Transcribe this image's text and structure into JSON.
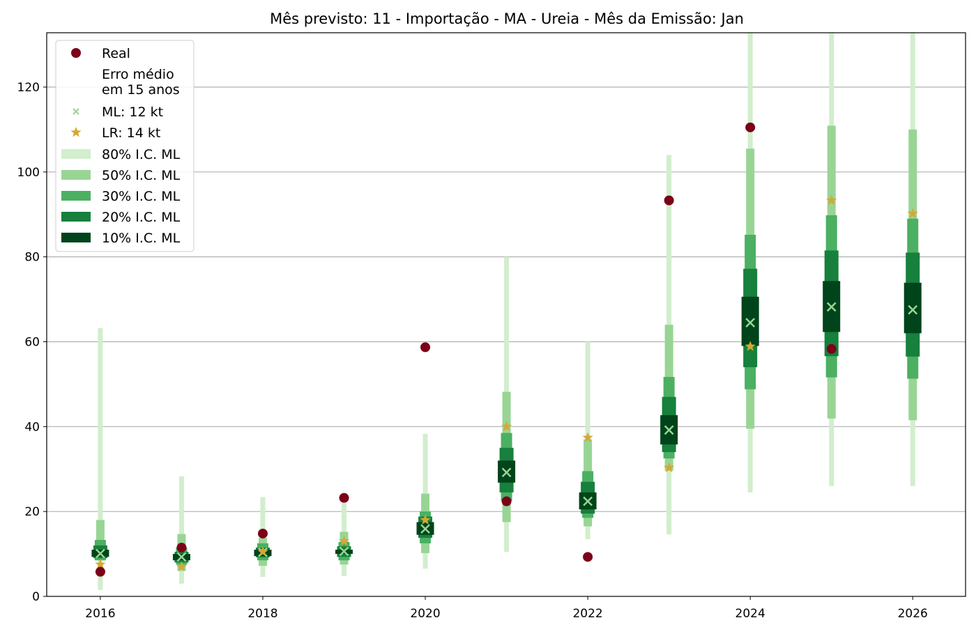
{
  "chart_data": {
    "type": "interval",
    "title": "Mês previsto: 11 - Importação - MA - Ureia - Mês da Emissão: Jan",
    "xlabel": "",
    "ylabel": "",
    "xlim": [
      2015.34,
      2026.65
    ],
    "ylim": [
      0,
      132.8
    ],
    "xticks": [
      2016,
      2018,
      2020,
      2022,
      2024,
      2026
    ],
    "yticks": [
      0,
      20,
      40,
      60,
      80,
      100,
      120
    ],
    "grid": "horizontal",
    "legend_position": "top-left",
    "legend": {
      "real": "Real",
      "erro": "Erro médio\nem 15 anos",
      "ml": "ML: 12 kt",
      "lr": "LR: 14 kt",
      "ci80": "80% I.C. ML",
      "ci50": "50% I.C. ML",
      "ci30": "30% I.C. ML",
      "ci20": "20% I.C. ML",
      "ci10": "10% I.C. ML"
    },
    "colors": {
      "ci80": "#d2eecd",
      "ci50": "#98d594",
      "ci30": "#4bb062",
      "ci20": "#16803c",
      "ci10": "#00441b",
      "real": "#7b0018",
      "lr": "#d4a934",
      "ml": "#98d594"
    },
    "years": [
      2016,
      2017,
      2018,
      2019,
      2020,
      2021,
      2022,
      2023,
      2024,
      2025,
      2026
    ],
    "ci80": [
      [
        1.5,
        63.2
      ],
      [
        3,
        28.3
      ],
      [
        4.6,
        23.4
      ],
      [
        4.8,
        22
      ],
      [
        6.5,
        38.3
      ],
      [
        10.5,
        80
      ],
      [
        13.5,
        60
      ],
      [
        14.6,
        104
      ],
      [
        24.5,
        140
      ],
      [
        26,
        140
      ],
      [
        26,
        140
      ]
    ],
    "ci50": [
      [
        8.5,
        18
      ],
      [
        6,
        14.7
      ],
      [
        7.2,
        13.8
      ],
      [
        7.5,
        15.2
      ],
      [
        10.2,
        24.2
      ],
      [
        17.5,
        48.2
      ],
      [
        16.5,
        37
      ],
      [
        29.6,
        64
      ],
      [
        39.5,
        105.5
      ],
      [
        41.9,
        110.9
      ],
      [
        41.5,
        110
      ]
    ],
    "ci30": [
      [
        8.5,
        13.3
      ],
      [
        7.5,
        11.5
      ],
      [
        8.5,
        12.5
      ],
      [
        8.5,
        12.8
      ],
      [
        12.5,
        20
      ],
      [
        22.5,
        38.5
      ],
      [
        18.5,
        29.5
      ],
      [
        32.5,
        51.7
      ],
      [
        48.8,
        85.2
      ],
      [
        51.6,
        89.8
      ],
      [
        51.3,
        89
      ]
    ],
    "ci20": [
      [
        9,
        12
      ],
      [
        8,
        10.5
      ],
      [
        9.2,
        11.5
      ],
      [
        9.3,
        11.8
      ],
      [
        13.8,
        18.8
      ],
      [
        24.5,
        35
      ],
      [
        19.5,
        27
      ],
      [
        34,
        47
      ],
      [
        54,
        77.2
      ],
      [
        56.6,
        81.5
      ],
      [
        56.5,
        81
      ]
    ],
    "ci10": [
      [
        9.3,
        11
      ],
      [
        8.5,
        10
      ],
      [
        9.5,
        11
      ],
      [
        10,
        11
      ],
      [
        14.5,
        17.5
      ],
      [
        26.8,
        32
      ],
      [
        20.5,
        24.5
      ],
      [
        35.8,
        42.7
      ],
      [
        59,
        70.6
      ],
      [
        62.3,
        74.3
      ],
      [
        62,
        73.9
      ]
    ],
    "ml": [
      10.1,
      9.3,
      10.4,
      10.6,
      15.9,
      29.2,
      22.4,
      39.2,
      64.5,
      68.2,
      67.5
    ],
    "lr": [
      7.5,
      7,
      10.5,
      13,
      18,
      40,
      37.4,
      30.3,
      58.9,
      93.3,
      90.2
    ],
    "real": [
      5.8,
      11.5,
      14.8,
      23.2,
      58.7,
      22.4,
      9.3,
      93.3,
      110.5,
      58.3,
      null
    ]
  }
}
